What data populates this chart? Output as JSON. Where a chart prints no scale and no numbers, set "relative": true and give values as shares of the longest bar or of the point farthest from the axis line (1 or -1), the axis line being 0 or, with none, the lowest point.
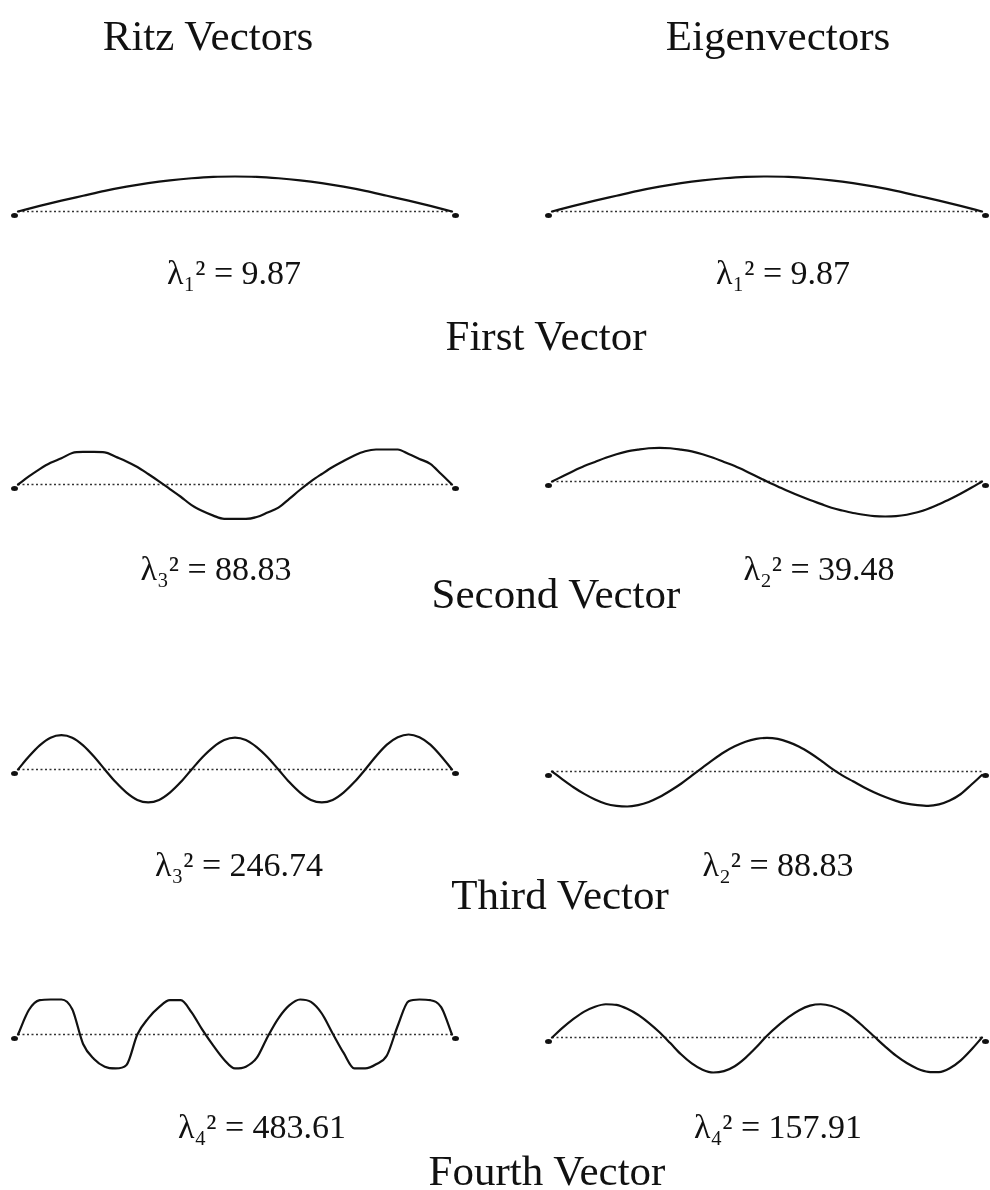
{
  "chart_data": [
    {
      "type": "line",
      "title": "Ritz Vectors",
      "relative": true,
      "categories": [
        null,
        null,
        null,
        null,
        null,
        null,
        null,
        null,
        null,
        null,
        null,
        null,
        null,
        null,
        null,
        null,
        null,
        null,
        null,
        null,
        null
      ],
      "series": [
        {
          "color": "#111111",
          "values": [
            0,
            0.16,
            0.31,
            0.45,
            0.59,
            0.71,
            0.81,
            0.89,
            0.95,
            0.99,
            1,
            0.99,
            0.95,
            0.89,
            0.81,
            0.71,
            0.59,
            0.45,
            0.31,
            0.16,
            0
          ]
        }
      ],
      "ref_lines": [
        {
          "axis": "y",
          "value": 0,
          "line_style": "dotted",
          "color": "#333333"
        }
      ],
      "annotations": [
        "λ₁² = 9.87",
        "First Vector"
      ]
    },
    {
      "type": "line",
      "title": "Eigenvectors",
      "relative": true,
      "categories": [
        null,
        null,
        null,
        null,
        null,
        null,
        null,
        null,
        null,
        null,
        null,
        null,
        null,
        null,
        null,
        null,
        null,
        null,
        null,
        null,
        null
      ],
      "series": [
        {
          "color": "#111111",
          "values": [
            0,
            0.16,
            0.31,
            0.45,
            0.59,
            0.71,
            0.81,
            0.89,
            0.95,
            0.99,
            1,
            0.99,
            0.95,
            0.89,
            0.81,
            0.71,
            0.59,
            0.45,
            0.31,
            0.16,
            0
          ]
        }
      ],
      "ref_lines": [
        {
          "axis": "y",
          "value": 0,
          "line_style": "dotted",
          "color": "#333333"
        }
      ],
      "annotations": [
        "λ₁² = 9.87"
      ]
    },
    {
      "type": "line",
      "relative": true,
      "categories": [
        null,
        null,
        null,
        null,
        null,
        null,
        null,
        null,
        null,
        null,
        null,
        null,
        null,
        null,
        null,
        null,
        null,
        null,
        null,
        null,
        null,
        null,
        null,
        null,
        null,
        null,
        null,
        null,
        null,
        null,
        null,
        null,
        null,
        null,
        null,
        null,
        null,
        null,
        null,
        null,
        null
      ],
      "series": [
        {
          "color": "#111111",
          "values": [
            0,
            0.23,
            0.44,
            0.62,
            0.75,
            0.9,
            0.93,
            0.93,
            0.92,
            0.79,
            0.66,
            0.5,
            0.3,
            0.09,
            -0.13,
            -0.35,
            -0.59,
            -0.76,
            -0.89,
            -0.98,
            -0.98,
            -0.98,
            -0.93,
            -0.8,
            -0.66,
            -0.41,
            -0.15,
            0.09,
            0.3,
            0.5,
            0.67,
            0.83,
            0.95,
            1,
            1,
            1,
            0.87,
            0.73,
            0.59,
            0.3,
            0
          ]
        }
      ],
      "ref_lines": [
        {
          "axis": "y",
          "value": 0,
          "line_style": "dotted",
          "color": "#333333"
        }
      ],
      "annotations": [
        "λ₃² = 88.83",
        "Second Vector"
      ]
    },
    {
      "type": "line",
      "relative": true,
      "categories": [
        null,
        null,
        null,
        null,
        null,
        null,
        null,
        null,
        null,
        null,
        null,
        null,
        null,
        null,
        null,
        null,
        null,
        null,
        null,
        null,
        null,
        null,
        null,
        null,
        null,
        null,
        null,
        null,
        null,
        null,
        null,
        null,
        null,
        null,
        null,
        null,
        null,
        null,
        null,
        null,
        null
      ],
      "series": [
        {
          "color": "#111111",
          "values": [
            0,
            0.15,
            0.3,
            0.44,
            0.56,
            0.68,
            0.78,
            0.86,
            0.91,
            0.95,
            0.96,
            0.95,
            0.91,
            0.86,
            0.78,
            0.68,
            0.56,
            0.44,
            0.3,
            0.15,
            0,
            -0.14,
            -0.28,
            -0.41,
            -0.53,
            -0.64,
            -0.75,
            -0.83,
            -0.9,
            -0.95,
            -0.99,
            -1,
            -0.99,
            -0.95,
            -0.88,
            -0.78,
            -0.65,
            -0.51,
            -0.35,
            -0.18,
            0
          ]
        }
      ],
      "ref_lines": [
        {
          "axis": "y",
          "value": 0,
          "line_style": "dotted",
          "color": "#333333"
        }
      ],
      "annotations": [
        "λ₂² = 39.48"
      ]
    },
    {
      "type": "line",
      "relative": true,
      "categories": [
        null,
        null,
        null,
        null,
        null,
        null,
        null,
        null,
        null,
        null,
        null,
        null,
        null,
        null,
        null,
        null,
        null,
        null,
        null,
        null,
        null,
        null,
        null,
        null,
        null,
        null,
        null,
        null,
        null,
        null,
        null,
        null,
        null,
        null,
        null,
        null,
        null,
        null,
        null,
        null,
        null
      ],
      "series": [
        {
          "color": "#111111",
          "values": [
            0,
            0.37,
            0.69,
            0.91,
            0.98,
            0.91,
            0.69,
            0.37,
            0,
            -0.36,
            -0.66,
            -0.87,
            -0.94,
            -0.87,
            -0.66,
            -0.36,
            0,
            0.35,
            0.64,
            0.84,
            0.91,
            0.84,
            0.64,
            0.35,
            0,
            -0.36,
            -0.66,
            -0.87,
            -0.94,
            -0.87,
            -0.66,
            -0.36,
            0,
            0.38,
            0.71,
            0.92,
            1,
            0.92,
            0.71,
            0.38,
            0
          ]
        }
      ],
      "ref_lines": [
        {
          "axis": "y",
          "value": 0,
          "line_style": "dotted",
          "color": "#333333"
        }
      ],
      "annotations": [
        "λ₃² = 246.74",
        "Third Vector"
      ]
    },
    {
      "type": "line",
      "relative": true,
      "categories": [
        null,
        null,
        null,
        null,
        null,
        null,
        null,
        null,
        null,
        null,
        null,
        null,
        null,
        null,
        null,
        null,
        null,
        null,
        null,
        null,
        null,
        null,
        null,
        null,
        null,
        null,
        null,
        null,
        null,
        null,
        null,
        null,
        null,
        null,
        null,
        null,
        null,
        null,
        null,
        null,
        null
      ],
      "series": [
        {
          "color": "#111111",
          "values": [
            0,
            -0.23,
            -0.45,
            -0.64,
            -0.8,
            -0.92,
            -0.98,
            -1,
            -0.96,
            -0.87,
            -0.73,
            -0.55,
            -0.35,
            -0.12,
            0.11,
            0.34,
            0.55,
            0.72,
            0.85,
            0.93,
            0.96,
            0.93,
            0.84,
            0.71,
            0.53,
            0.32,
            0.09,
            -0.11,
            -0.28,
            -0.45,
            -0.6,
            -0.73,
            -0.84,
            -0.92,
            -0.96,
            -0.98,
            -0.94,
            -0.83,
            -0.65,
            -0.38,
            -0.1
          ]
        }
      ],
      "ref_lines": [
        {
          "axis": "y",
          "value": 0,
          "line_style": "dotted",
          "color": "#333333"
        }
      ],
      "annotations": [
        "λ₂² = 88.83"
      ]
    },
    {
      "type": "line",
      "relative": true,
      "categories": [
        null,
        null,
        null,
        null,
        null,
        null,
        null,
        null,
        null,
        null,
        null,
        null,
        null,
        null,
        null,
        null,
        null,
        null,
        null,
        null,
        null,
        null,
        null,
        null,
        null,
        null,
        null,
        null,
        null,
        null,
        null,
        null,
        null,
        null,
        null,
        null,
        null,
        null,
        null,
        null,
        null
      ],
      "series": [
        {
          "color": "#111111",
          "values": [
            0,
            0.7,
            0.98,
            1,
            1,
            0.72,
            -0.27,
            -0.7,
            -0.92,
            -0.97,
            -0.87,
            0,
            0.46,
            0.78,
            0.98,
            0.98,
            0.63,
            0.13,
            -0.32,
            -0.72,
            -0.97,
            -0.92,
            -0.67,
            -0.07,
            0.46,
            0.83,
            1,
            0.93,
            0.6,
            0.03,
            -0.52,
            -0.97,
            -0.97,
            -0.85,
            -0.6,
            0.25,
            0.95,
            1,
            0.98,
            0.78,
            0
          ]
        }
      ],
      "ref_lines": [
        {
          "axis": "y",
          "value": 0,
          "line_style": "dotted",
          "color": "#333333"
        }
      ],
      "annotations": [
        "λ₄² = 483.61",
        "Fourth Vector"
      ]
    },
    {
      "type": "line",
      "relative": true,
      "categories": [
        null,
        null,
        null,
        null,
        null,
        null,
        null,
        null,
        null,
        null,
        null,
        null,
        null,
        null,
        null,
        null,
        null,
        null,
        null,
        null,
        null,
        null,
        null,
        null,
        null,
        null,
        null,
        null,
        null,
        null,
        null,
        null,
        null,
        null,
        null,
        null,
        null,
        null,
        null,
        null,
        null
      ],
      "series": [
        {
          "color": "#111111",
          "values": [
            0,
            0.28,
            0.53,
            0.74,
            0.88,
            0.95,
            0.93,
            0.82,
            0.65,
            0.42,
            0.15,
            -0.16,
            -0.48,
            -0.74,
            -0.92,
            -1,
            -0.96,
            -0.82,
            -0.58,
            -0.28,
            0.05,
            0.33,
            0.58,
            0.78,
            0.91,
            0.95,
            0.9,
            0.77,
            0.57,
            0.3,
            0.02,
            -0.26,
            -0.52,
            -0.73,
            -0.89,
            -0.98,
            -0.99,
            -0.88,
            -0.66,
            -0.35,
            0
          ]
        }
      ],
      "ref_lines": [
        {
          "axis": "y",
          "value": 0,
          "line_style": "dotted",
          "color": "#333333"
        }
      ],
      "annotations": [
        "λ₄² = 157.91"
      ]
    }
  ]
}
